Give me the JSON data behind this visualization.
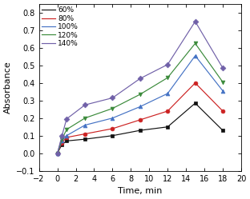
{
  "title": "",
  "xlabel": "Time, min",
  "ylabel": "Absorbance",
  "xlim": [
    -2,
    20
  ],
  "ylim": [
    -0.1,
    0.85
  ],
  "xticks": [
    -2,
    0,
    2,
    4,
    6,
    8,
    10,
    12,
    14,
    16,
    18,
    20
  ],
  "yticks": [
    -0.1,
    0.0,
    0.1,
    0.2,
    0.3,
    0.4,
    0.5,
    0.6,
    0.7,
    0.8
  ],
  "series": [
    {
      "label": "60%",
      "color": "#111111",
      "marker": "s",
      "x": [
        0,
        0.5,
        1,
        3,
        6,
        9,
        12,
        15,
        18
      ],
      "y": [
        0.0,
        0.05,
        0.07,
        0.08,
        0.1,
        0.13,
        0.15,
        0.285,
        0.13
      ]
    },
    {
      "label": "80%",
      "color": "#cc2222",
      "marker": "o",
      "x": [
        0,
        0.5,
        1,
        3,
        6,
        9,
        12,
        15,
        18
      ],
      "y": [
        0.0,
        0.06,
        0.09,
        0.11,
        0.14,
        0.19,
        0.24,
        0.4,
        0.24
      ]
    },
    {
      "label": "100%",
      "color": "#4472c4",
      "marker": "^",
      "x": [
        0,
        0.5,
        1,
        3,
        6,
        9,
        12,
        15,
        18
      ],
      "y": [
        0.0,
        0.07,
        0.1,
        0.16,
        0.2,
        0.265,
        0.34,
        0.555,
        0.355
      ]
    },
    {
      "label": "120%",
      "color": "#3a8a3a",
      "marker": "v",
      "x": [
        0,
        0.5,
        1,
        3,
        6,
        9,
        12,
        15,
        18
      ],
      "y": [
        0.0,
        0.08,
        0.135,
        0.2,
        0.255,
        0.335,
        0.43,
        0.625,
        0.405
      ]
    },
    {
      "label": "140%",
      "color": "#7060a8",
      "marker": "D",
      "x": [
        0,
        0.5,
        1,
        3,
        6,
        9,
        12,
        15,
        18
      ],
      "y": [
        0.0,
        0.1,
        0.195,
        0.275,
        0.315,
        0.425,
        0.505,
        0.75,
        0.485
      ]
    }
  ],
  "figsize": [
    3.12,
    2.49
  ],
  "dpi": 100,
  "legend_fontsize": 6.5,
  "axis_fontsize": 8,
  "tick_fontsize": 7,
  "linewidth": 0.85,
  "markersize": 3.5
}
